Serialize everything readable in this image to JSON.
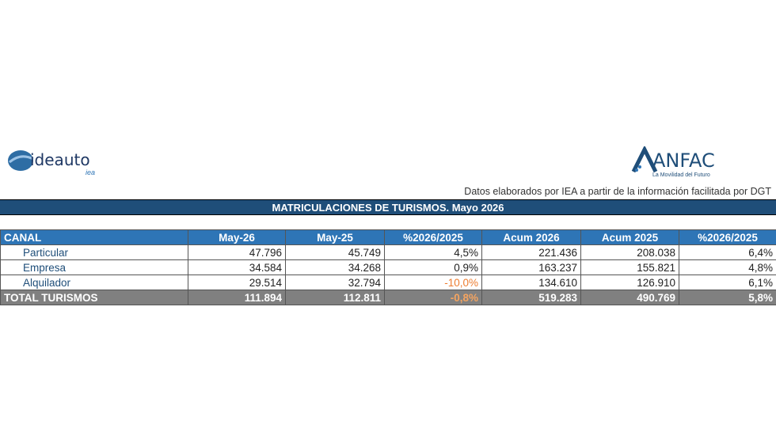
{
  "logos": {
    "left": {
      "name": "ideauto",
      "sub": "iea"
    },
    "right": {
      "name": "ANFAC",
      "tagline": "La Movilidad del Futuro"
    }
  },
  "note": "Datos elaborados por IEA a partir de la información facilitada por DGT",
  "title": "MATRICULACIONES DE TURISMOS. Mayo 2026",
  "table": {
    "headers": [
      "CANAL",
      "May-26",
      "May-25",
      "%2026/2025",
      "Acum 2026",
      "Acum 2025",
      "%2026/2025"
    ],
    "rows": [
      [
        "Particular",
        "47.796",
        "45.749",
        "4,5%",
        "221.436",
        "208.038",
        "6,4%"
      ],
      [
        "Empresa",
        "34.584",
        "34.268",
        "0,9%",
        "163.237",
        "155.821",
        "4,8%"
      ],
      [
        "Alquilador",
        "29.514",
        "32.794",
        "-10,0%",
        "134.610",
        "126.910",
        "6,1%"
      ]
    ],
    "total": [
      "TOTAL TURISMOS",
      "111.894",
      "112.811",
      "-0,8%",
      "519.283",
      "490.769",
      "5,8%"
    ]
  }
}
